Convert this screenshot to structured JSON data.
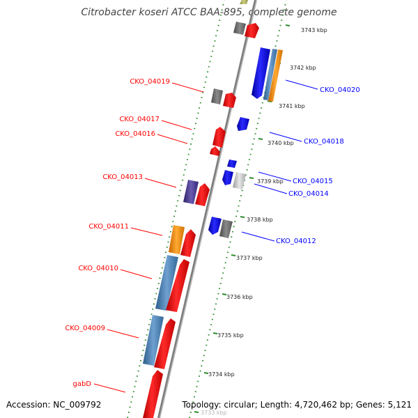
{
  "title": "Citrobacter koseri ATCC BAA-895, complete genome",
  "accession": "Accession: NC_009792",
  "topology": "Topology: circular; Length: 4,720,462 bp; Genes: 5,121",
  "colors": {
    "forward_gene": "#ff0000",
    "reverse_gene": "#0000ff",
    "pseudo_gray": "#777777",
    "rna_steelblue": "#4f86b8",
    "orange": "#ff8c00",
    "purple": "#4b3c8c",
    "dots": "#2e8b2e",
    "backbone": "#8f8f8f"
  },
  "ticks": [
    "3733 kbp",
    "3734 kbp",
    "3735 kbp",
    "3736 kbp",
    "3737 kbp",
    "3738 kbp",
    "3739 kbp",
    "3740 kbp",
    "3741 kbp",
    "3742 kbp",
    "3743 kbp"
  ],
  "forward_labels": [
    "CKO_04019",
    "CKO_04017",
    "CKO_04016",
    "CKO_04013",
    "CKO_04011",
    "CKO_04010",
    "CKO_04009",
    "gabD"
  ],
  "reverse_labels": [
    "CKO_04020",
    "CKO_04018",
    "CKO_04015",
    "CKO_04014",
    "CKO_04012"
  ]
}
